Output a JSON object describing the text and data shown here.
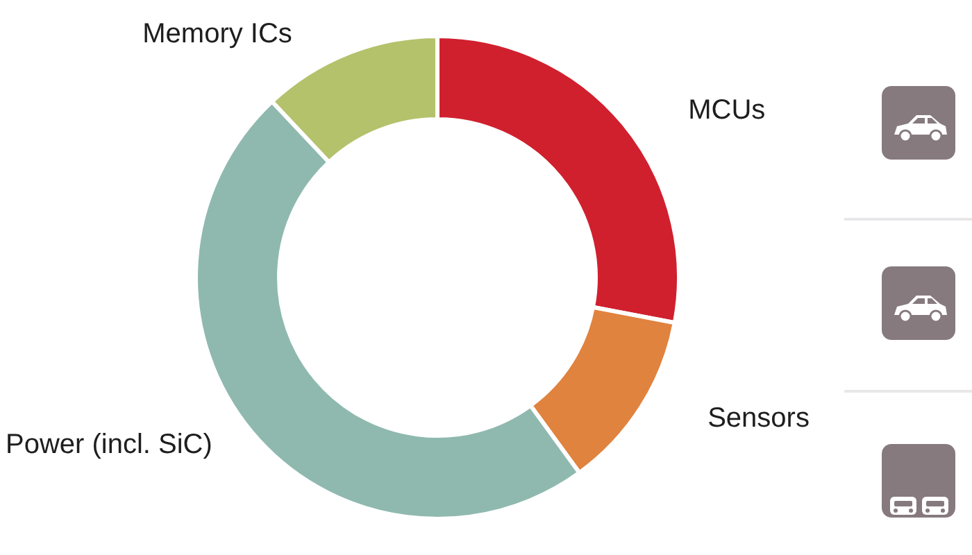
{
  "chart_data": {
    "type": "donut",
    "categories": [
      "MCUs",
      "Sensors",
      "Power (incl. SiC)",
      "Memory ICs"
    ],
    "values": [
      28,
      12,
      48,
      12
    ],
    "colors": [
      "#d0202e",
      "#e0833f",
      "#8fb9af",
      "#b4c26c"
    ]
  }
}
